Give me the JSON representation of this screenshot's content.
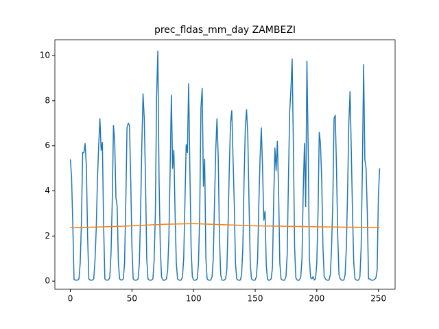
{
  "chart_data": {
    "type": "line",
    "title": "prec_fldas_mm_day ZAMBEZI",
    "xlim": [
      -12.55,
      263.55
    ],
    "xticks": [
      0,
      50,
      100,
      150,
      200,
      250
    ],
    "ylim": [
      -0.36,
      10.7
    ],
    "yticks": [
      0,
      2,
      4,
      6,
      8,
      10
    ],
    "x": [
      0,
      1,
      2,
      3,
      4,
      5,
      6,
      7,
      8,
      9,
      10,
      11,
      12,
      13,
      14,
      15,
      16,
      17,
      18,
      19,
      20,
      21,
      22,
      23,
      24,
      25,
      26,
      27,
      28,
      29,
      30,
      31,
      32,
      33,
      34,
      35,
      36,
      37,
      38,
      39,
      40,
      41,
      42,
      43,
      44,
      45,
      46,
      47,
      48,
      49,
      50,
      51,
      52,
      53,
      54,
      55,
      56,
      57,
      58,
      59,
      60,
      61,
      62,
      63,
      64,
      65,
      66,
      67,
      68,
      69,
      70,
      71,
      72,
      73,
      74,
      75,
      76,
      77,
      78,
      79,
      80,
      81,
      82,
      83,
      84,
      85,
      86,
      87,
      88,
      89,
      90,
      91,
      92,
      93,
      94,
      95,
      96,
      97,
      98,
      99,
      100,
      101,
      102,
      103,
      104,
      105,
      106,
      107,
      108,
      109,
      110,
      111,
      112,
      113,
      114,
      115,
      116,
      117,
      118,
      119,
      120,
      121,
      122,
      123,
      124,
      125,
      126,
      127,
      128,
      129,
      130,
      131,
      132,
      133,
      134,
      135,
      136,
      137,
      138,
      139,
      140,
      141,
      142,
      143,
      144,
      145,
      146,
      147,
      148,
      149,
      150,
      151,
      152,
      153,
      154,
      155,
      156,
      157,
      158,
      159,
      160,
      161,
      162,
      163,
      164,
      165,
      166,
      167,
      168,
      169,
      170,
      171,
      172,
      173,
      174,
      175,
      176,
      177,
      178,
      179,
      180,
      181,
      182,
      183,
      184,
      185,
      186,
      187,
      188,
      189,
      190,
      191,
      192,
      193,
      194,
      195,
      196,
      197,
      198,
      199,
      200,
      201,
      202,
      203,
      204,
      205,
      206,
      207,
      208,
      209,
      210,
      211,
      212,
      213,
      214,
      215,
      216,
      217,
      218,
      219,
      220,
      221,
      222,
      223,
      224,
      225,
      226,
      227,
      228,
      229,
      230,
      231,
      232,
      233,
      234,
      235,
      236,
      237,
      238,
      239,
      240,
      241,
      242,
      243,
      244,
      245,
      246,
      247,
      248,
      249,
      250,
      251
    ],
    "series": [
      {
        "color": "#1f77b4",
        "values": [
          5.4,
          4.6,
          2.5,
          0.07,
          0.05,
          0.04,
          0.05,
          0.1,
          0.8,
          2.6,
          5.7,
          5.7,
          6.1,
          5.1,
          2.0,
          0.1,
          0.05,
          0.04,
          0.05,
          0.1,
          0.9,
          2.3,
          4.5,
          6.0,
          7.2,
          5.8,
          6.15,
          2.5,
          0.1,
          0.05,
          0.04,
          0.06,
          0.15,
          1.2,
          3.5,
          6.9,
          6.2,
          3.7,
          3.3,
          0.8,
          0.1,
          0.05,
          0.05,
          0.1,
          0.8,
          3.5,
          6.8,
          7.0,
          6.9,
          4.5,
          1.5,
          0.1,
          0.05,
          0.04,
          0.05,
          0.1,
          0.8,
          3.0,
          6.0,
          8.3,
          7.2,
          4.5,
          1.0,
          0.1,
          0.05,
          0.04,
          0.05,
          0.1,
          0.9,
          3.0,
          8.2,
          10.2,
          4.5,
          1.5,
          0.2,
          0.05,
          0.04,
          0.05,
          0.1,
          0.5,
          2.0,
          5.0,
          8.25,
          5.0,
          5.8,
          3.0,
          0.8,
          0.1,
          0.05,
          0.04,
          0.05,
          0.2,
          1.0,
          3.5,
          6.05,
          5.7,
          8.75,
          5.0,
          1.5,
          0.2,
          0.05,
          0.04,
          0.05,
          0.1,
          0.8,
          3.0,
          7.7,
          8.55,
          4.2,
          5.4,
          1.0,
          0.1,
          0.05,
          0.04,
          0.05,
          0.2,
          1.0,
          3.5,
          5.8,
          7.2,
          5.5,
          2.0,
          0.3,
          0.05,
          0.04,
          0.05,
          0.1,
          0.5,
          2.5,
          5.0,
          7.0,
          7.55,
          5.5,
          3.5,
          0.8,
          0.1,
          0.05,
          0.04,
          0.05,
          0.3,
          1.5,
          4.5,
          6.8,
          7.6,
          6.5,
          3.5,
          0.8,
          0.1,
          0.05,
          0.04,
          0.05,
          0.2,
          1.0,
          3.5,
          5.5,
          6.8,
          5.0,
          2.7,
          3.1,
          0.7,
          0.08,
          0.04,
          0.05,
          0.1,
          0.6,
          3.5,
          5.9,
          4.9,
          6.2,
          4.0,
          0.8,
          0.1,
          0.05,
          0.04,
          0.05,
          0.2,
          1.2,
          4.5,
          7.5,
          8.5,
          9.85,
          6.0,
          1.5,
          0.15,
          0.05,
          0.04,
          0.05,
          0.2,
          1.0,
          4.0,
          6.1,
          3.3,
          9.75,
          6.0,
          1.0,
          0.15,
          0.1,
          0.2,
          0.05,
          0.1,
          0.8,
          3.0,
          6.6,
          6.1,
          4.5,
          1.5,
          0.2,
          0.1,
          0.05,
          0.04,
          0.05,
          0.3,
          1.5,
          3.5,
          7.2,
          7.35,
          5.0,
          2.0,
          0.3,
          0.1,
          0.05,
          0.04,
          0.05,
          0.3,
          1.5,
          4.0,
          7.0,
          8.4,
          5.8,
          3.0,
          0.8,
          0.1,
          0.05,
          0.04,
          0.05,
          0.2,
          1.5,
          5.0,
          9.6,
          5.4,
          5.0,
          3.0,
          0.1,
          0.1,
          0.05,
          0.04,
          0.05,
          0.08,
          0.15,
          0.5,
          3.8,
          5.0
        ]
      },
      {
        "color": "#ff7f0e",
        "x": [
          0,
          25,
          50,
          75,
          100,
          125,
          150,
          175,
          200,
          225,
          251
        ],
        "values": [
          2.37,
          2.4,
          2.45,
          2.52,
          2.55,
          2.5,
          2.45,
          2.43,
          2.41,
          2.39,
          2.38
        ]
      }
    ]
  }
}
